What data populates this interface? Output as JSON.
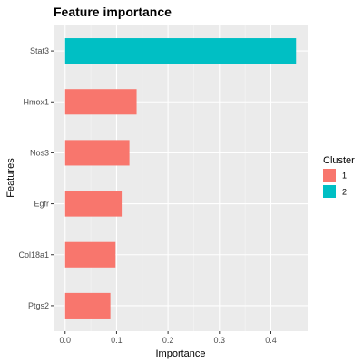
{
  "chart_data": {
    "type": "bar",
    "orientation": "horizontal",
    "title": "Feature importance",
    "xlabel": "Importance",
    "ylabel": "Features",
    "categories": [
      "Stat3",
      "Hmox1",
      "Nos3",
      "Egfr",
      "Col18a1",
      "Ptgs2"
    ],
    "values": [
      0.449,
      0.139,
      0.125,
      0.11,
      0.098,
      0.088
    ],
    "cluster": [
      "2",
      "1",
      "1",
      "1",
      "1",
      "1"
    ],
    "xlim": [
      -0.0225,
      0.4715
    ],
    "xticks": [
      0.0,
      0.1,
      0.2,
      0.3,
      0.4
    ],
    "xtick_labels": [
      "0.0",
      "0.1",
      "0.2",
      "0.3",
      "0.4"
    ],
    "grid": true,
    "legend": {
      "title": "Cluster",
      "placement": "right",
      "entries": [
        {
          "label": "1",
          "color": "#F8766D"
        },
        {
          "label": "2",
          "color": "#00BFC4"
        }
      ]
    }
  },
  "colors": {
    "panel_background": "#EBEBEB",
    "grid_major": "#FFFFFF",
    "cluster_1": "#F8766D",
    "cluster_2": "#00BFC4"
  }
}
